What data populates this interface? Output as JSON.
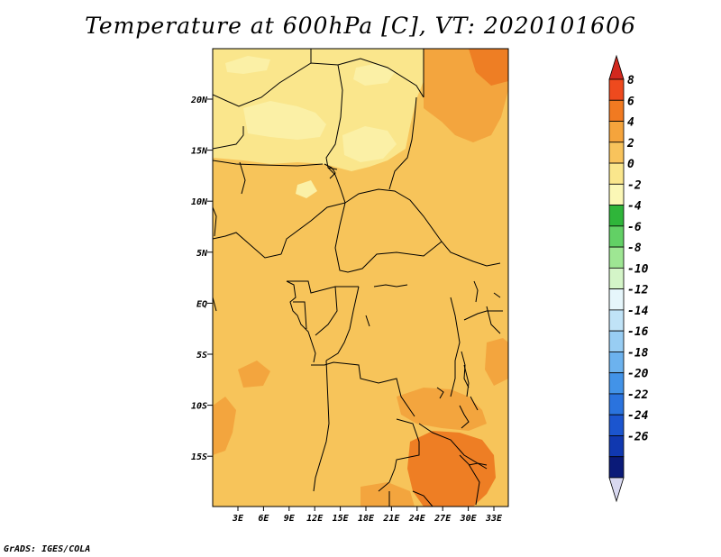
{
  "title": "Temperature at 600hPa [C], VT: 2020101606",
  "credit": "GrADS: IGES/COLA",
  "map": {
    "lat_ticks": [
      "20N",
      "15N",
      "10N",
      "5N",
      "EQ",
      "5S",
      "10S",
      "15S"
    ],
    "lon_ticks": [
      "3E",
      "6E",
      "9E",
      "12E",
      "15E",
      "18E",
      "21E",
      "24E",
      "27E",
      "30E",
      "33E"
    ],
    "colors": {
      "cool": "#fae68c",
      "pale": "#fbf0a6",
      "warm": "#f7c45a",
      "warmer": "#f3a53e",
      "hot": "#ee7e24",
      "border": "#000000"
    }
  },
  "colorbar": {
    "labels": [
      "8",
      "6",
      "4",
      "2",
      "0",
      "-2",
      "-4",
      "-6",
      "-8",
      "-10",
      "-12",
      "-14",
      "-16",
      "-18",
      "-20",
      "-22",
      "-24",
      "-26"
    ],
    "colors": [
      "#d2281e",
      "#ee4a1e",
      "#f17a21",
      "#f5a43c",
      "#f8c35c",
      "#fae68c",
      "#fbf7b6",
      "#2fb53a",
      "#62d065",
      "#9ee693",
      "#d4f5c8",
      "#e6f6fb",
      "#c0e3f7",
      "#98cdf3",
      "#6cb2ee",
      "#4293e8",
      "#2a73de",
      "#1b55cf",
      "#1038b0",
      "#0a1a78",
      "#d8d8f0"
    ]
  }
}
